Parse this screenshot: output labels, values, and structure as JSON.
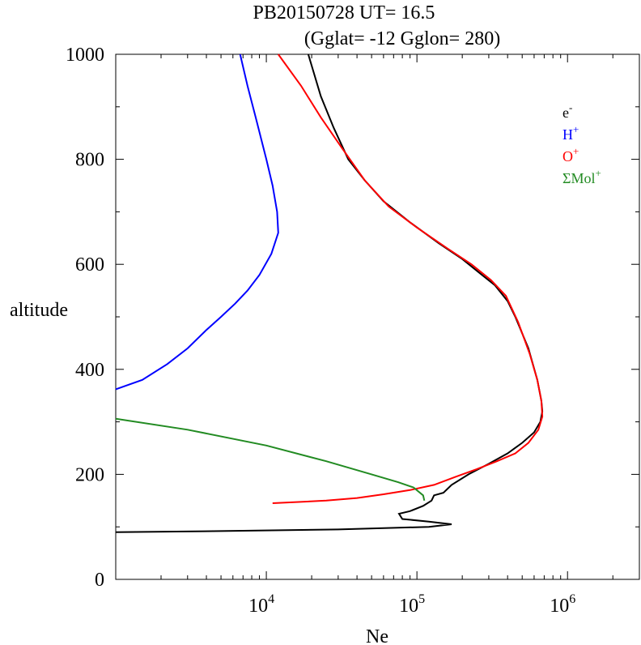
{
  "chart_data": {
    "type": "line",
    "title": "PB20150728   UT=  16.5",
    "subtitle": "(Gglat= -12   Gglon=  280)",
    "xlabel": "Ne",
    "ylabel": "altitude",
    "xscale": "log",
    "xlim": [
      1000,
      3000000
    ],
    "ylim": [
      0,
      1000
    ],
    "grid": false,
    "legend_position": "top-right",
    "y_ticks": [
      0,
      200,
      400,
      600,
      800,
      1000
    ],
    "y_tick_labels": [
      "0",
      "200",
      "400",
      "600",
      "800",
      "1000"
    ],
    "x_major_ticks": [
      10000,
      100000,
      1000000
    ],
    "x_tick_labels": [
      {
        "base": "10",
        "exp": "4"
      },
      {
        "base": "10",
        "exp": "5"
      },
      {
        "base": "10",
        "exp": "6"
      }
    ],
    "series": [
      {
        "name": "e-",
        "legend_base": "e",
        "legend_sup": "-",
        "color": "#000000",
        "points": [
          [
            1000,
            90
          ],
          [
            5000,
            92
          ],
          [
            30000,
            95
          ],
          [
            120000,
            100
          ],
          [
            170000,
            105
          ],
          [
            120000,
            110
          ],
          [
            80000,
            115
          ],
          [
            76000,
            125
          ],
          [
            90000,
            130
          ],
          [
            110000,
            140
          ],
          [
            125000,
            150
          ],
          [
            130000,
            160
          ],
          [
            150000,
            165
          ],
          [
            170000,
            180
          ],
          [
            220000,
            200
          ],
          [
            300000,
            220
          ],
          [
            400000,
            240
          ],
          [
            500000,
            260
          ],
          [
            600000,
            280
          ],
          [
            660000,
            300
          ],
          [
            680000,
            320
          ],
          [
            670000,
            340
          ],
          [
            630000,
            380
          ],
          [
            550000,
            440
          ],
          [
            450000,
            500
          ],
          [
            400000,
            530
          ],
          [
            330000,
            560
          ],
          [
            270000,
            580
          ],
          [
            200000,
            610
          ],
          [
            140000,
            640
          ],
          [
            90000,
            680
          ],
          [
            60000,
            720
          ],
          [
            45000,
            760
          ],
          [
            35000,
            800
          ],
          [
            28000,
            860
          ],
          [
            23000,
            920
          ],
          [
            19000,
            1000
          ]
        ]
      },
      {
        "name": "H+",
        "legend_base": "H",
        "legend_sup": "+",
        "color": "#0000ff",
        "points": [
          [
            1000,
            362
          ],
          [
            1500,
            380
          ],
          [
            2200,
            410
          ],
          [
            3000,
            440
          ],
          [
            4000,
            475
          ],
          [
            5000,
            500
          ],
          [
            6200,
            525
          ],
          [
            7500,
            550
          ],
          [
            9000,
            580
          ],
          [
            10800,
            620
          ],
          [
            12000,
            660
          ],
          [
            11800,
            700
          ],
          [
            11000,
            750
          ],
          [
            10000,
            800
          ],
          [
            8500,
            880
          ],
          [
            7500,
            940
          ],
          [
            6700,
            1000
          ]
        ]
      },
      {
        "name": "O+",
        "legend_base": "O",
        "legend_sup": "+",
        "color": "#ff0000",
        "points": [
          [
            11000,
            145
          ],
          [
            25000,
            150
          ],
          [
            40000,
            155
          ],
          [
            60000,
            162
          ],
          [
            90000,
            170
          ],
          [
            130000,
            180
          ],
          [
            180000,
            195
          ],
          [
            250000,
            210
          ],
          [
            340000,
            225
          ],
          [
            450000,
            240
          ],
          [
            550000,
            260
          ],
          [
            640000,
            285
          ],
          [
            680000,
            310
          ],
          [
            670000,
            340
          ],
          [
            630000,
            380
          ],
          [
            560000,
            430
          ],
          [
            470000,
            490
          ],
          [
            390000,
            540
          ],
          [
            310000,
            570
          ],
          [
            230000,
            600
          ],
          [
            160000,
            630
          ],
          [
            100000,
            670
          ],
          [
            65000,
            710
          ],
          [
            45000,
            760
          ],
          [
            32000,
            820
          ],
          [
            23000,
            880
          ],
          [
            17000,
            940
          ],
          [
            12000,
            1000
          ]
        ]
      },
      {
        "name": "ΣMol+",
        "legend_base": "ΣMol",
        "legend_sup": "+",
        "color": "#228b22",
        "points": [
          [
            1000,
            306
          ],
          [
            3000,
            285
          ],
          [
            10000,
            255
          ],
          [
            25000,
            225
          ],
          [
            50000,
            200
          ],
          [
            75000,
            185
          ],
          [
            95000,
            175
          ],
          [
            110000,
            160
          ],
          [
            112000,
            150
          ]
        ]
      }
    ]
  }
}
